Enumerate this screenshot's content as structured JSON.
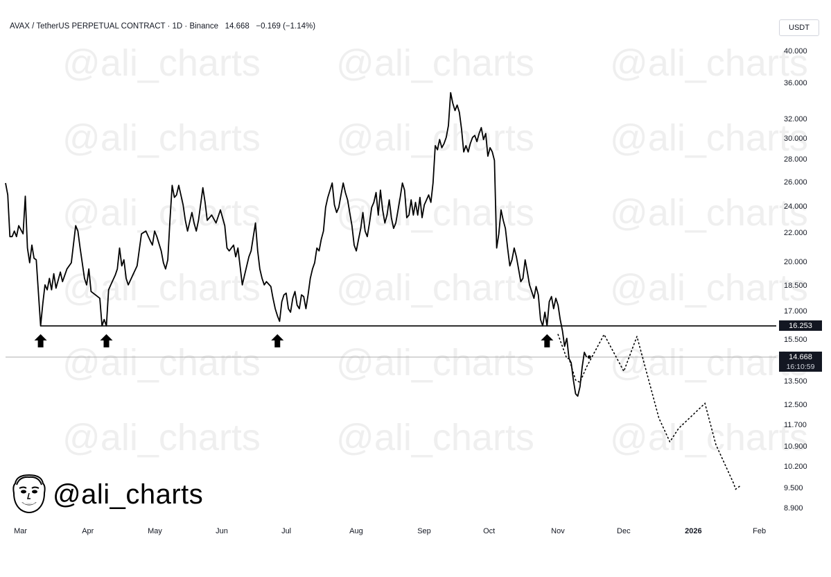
{
  "header": {
    "symbol": "AVAX / TetherUS PERPETUAL CONTRACT · 1D · Binance",
    "price": "14.668",
    "change": "−0.169 (−1.14%)"
  },
  "currency": "USDT",
  "watermark_text": "@ali_charts",
  "brand_text": "@ali_charts",
  "badges": {
    "support_level": "16.253",
    "last_price": "14.668",
    "countdown": "16:10:59"
  },
  "colors": {
    "background": "#ffffff",
    "price_line": "#000000",
    "badge": "#131722",
    "watermark": "#efefef"
  },
  "chart_data": {
    "type": "line",
    "x_axis": {
      "type": "date",
      "range": [
        "2025-02-22",
        "2026-02-06"
      ],
      "ticks": [
        {
          "label": "Mar",
          "date": "2025-03-01"
        },
        {
          "label": "Apr",
          "date": "2025-04-01"
        },
        {
          "label": "May",
          "date": "2025-05-01"
        },
        {
          "label": "Jun",
          "date": "2025-06-01"
        },
        {
          "label": "Jul",
          "date": "2025-07-01"
        },
        {
          "label": "Aug",
          "date": "2025-08-01"
        },
        {
          "label": "Sep",
          "date": "2025-09-01"
        },
        {
          "label": "Oct",
          "date": "2025-10-01"
        },
        {
          "label": "Nov",
          "date": "2025-11-01"
        },
        {
          "label": "Dec",
          "date": "2025-12-01"
        },
        {
          "label": "2026",
          "date": "2026-01-01",
          "bold": true
        },
        {
          "label": "Feb",
          "date": "2026-02-01"
        }
      ]
    },
    "y_axis": {
      "scale": "log",
      "range": [
        8.5,
        43
      ],
      "ticks": [
        "40.000",
        "36.000",
        "32.000",
        "30.000",
        "28.000",
        "26.000",
        "24.000",
        "22.000",
        "20.000",
        "18.500",
        "17.000",
        "15.500",
        "13.500",
        "12.500",
        "11.700",
        "10.900",
        "10.200",
        "9.500",
        "8.900"
      ]
    },
    "grid": false,
    "series": [
      {
        "style": "solid",
        "points": [
          [
            "2025-02-22",
            26.0
          ],
          [
            "2025-02-23",
            25.0
          ],
          [
            "2025-02-24",
            21.8
          ],
          [
            "2025-02-25",
            21.8
          ],
          [
            "2025-02-26",
            22.2
          ],
          [
            "2025-02-27",
            21.8
          ],
          [
            "2025-02-28",
            22.6
          ],
          [
            "2025-03-02",
            22.0
          ],
          [
            "2025-03-03",
            24.9
          ],
          [
            "2025-03-04",
            21.0
          ],
          [
            "2025-03-05",
            20.0
          ],
          [
            "2025-03-06",
            21.2
          ],
          [
            "2025-03-07",
            20.3
          ],
          [
            "2025-03-08",
            20.2
          ],
          [
            "2025-03-10",
            16.253
          ],
          [
            "2025-03-11",
            17.5
          ],
          [
            "2025-03-12",
            18.6
          ],
          [
            "2025-03-13",
            18.3
          ],
          [
            "2025-03-14",
            19.0
          ],
          [
            "2025-03-15",
            18.3
          ],
          [
            "2025-03-16",
            19.3
          ],
          [
            "2025-03-17",
            18.4
          ],
          [
            "2025-03-19",
            19.4
          ],
          [
            "2025-03-20",
            18.8
          ],
          [
            "2025-03-22",
            19.6
          ],
          [
            "2025-03-24",
            20.0
          ],
          [
            "2025-03-26",
            22.6
          ],
          [
            "2025-03-27",
            22.2
          ],
          [
            "2025-03-28",
            21.0
          ],
          [
            "2025-03-30",
            19.0
          ],
          [
            "2025-03-31",
            18.6
          ],
          [
            "2025-04-01",
            19.6
          ],
          [
            "2025-04-02",
            18.2
          ],
          [
            "2025-04-04",
            18.0
          ],
          [
            "2025-04-06",
            17.8
          ],
          [
            "2025-04-07",
            16.253
          ],
          [
            "2025-04-08",
            16.6
          ],
          [
            "2025-04-09",
            16.253
          ],
          [
            "2025-04-10",
            18.3
          ],
          [
            "2025-04-11",
            18.6
          ],
          [
            "2025-04-13",
            19.2
          ],
          [
            "2025-04-14",
            19.6
          ],
          [
            "2025-04-15",
            21.0
          ],
          [
            "2025-04-16",
            19.8
          ],
          [
            "2025-04-17",
            20.2
          ],
          [
            "2025-04-18",
            19.0
          ],
          [
            "2025-04-19",
            18.6
          ],
          [
            "2025-04-21",
            19.2
          ],
          [
            "2025-04-23",
            19.8
          ],
          [
            "2025-04-25",
            22.0
          ],
          [
            "2025-04-27",
            22.2
          ],
          [
            "2025-04-29",
            21.5
          ],
          [
            "2025-04-30",
            21.2
          ],
          [
            "2025-05-01",
            22.2
          ],
          [
            "2025-05-02",
            21.8
          ],
          [
            "2025-05-04",
            20.8
          ],
          [
            "2025-05-05",
            20.0
          ],
          [
            "2025-05-06",
            19.6
          ],
          [
            "2025-05-07",
            20.2
          ],
          [
            "2025-05-08",
            23.0
          ],
          [
            "2025-05-09",
            25.8
          ],
          [
            "2025-05-10",
            24.8
          ],
          [
            "2025-05-11",
            25.0
          ],
          [
            "2025-05-12",
            25.8
          ],
          [
            "2025-05-14",
            24.2
          ],
          [
            "2025-05-15",
            23.0
          ],
          [
            "2025-05-16",
            22.2
          ],
          [
            "2025-05-18",
            23.6
          ],
          [
            "2025-05-19",
            22.8
          ],
          [
            "2025-05-20",
            22.2
          ],
          [
            "2025-05-21",
            23.0
          ],
          [
            "2025-05-23",
            25.6
          ],
          [
            "2025-05-24",
            24.4
          ],
          [
            "2025-05-25",
            23.0
          ],
          [
            "2025-05-27",
            23.4
          ],
          [
            "2025-05-29",
            22.8
          ],
          [
            "2025-05-31",
            23.8
          ],
          [
            "2025-06-02",
            22.6
          ],
          [
            "2025-06-03",
            21.0
          ],
          [
            "2025-06-04",
            20.8
          ],
          [
            "2025-06-06",
            21.2
          ],
          [
            "2025-06-07",
            20.4
          ],
          [
            "2025-06-08",
            21.0
          ],
          [
            "2025-06-10",
            18.6
          ],
          [
            "2025-06-11",
            19.2
          ],
          [
            "2025-06-13",
            20.4
          ],
          [
            "2025-06-14",
            20.8
          ],
          [
            "2025-06-15",
            21.8
          ],
          [
            "2025-06-16",
            22.8
          ],
          [
            "2025-06-17",
            20.8
          ],
          [
            "2025-06-18",
            19.6
          ],
          [
            "2025-06-19",
            19.0
          ],
          [
            "2025-06-20",
            18.6
          ],
          [
            "2025-06-21",
            18.8
          ],
          [
            "2025-06-23",
            18.5
          ],
          [
            "2025-06-24",
            17.8
          ],
          [
            "2025-06-25",
            17.2
          ],
          [
            "2025-06-26",
            16.8
          ],
          [
            "2025-06-27",
            16.5
          ],
          [
            "2025-06-28",
            17.6
          ],
          [
            "2025-06-29",
            18.0
          ],
          [
            "2025-06-30",
            18.1
          ],
          [
            "2025-07-01",
            17.2
          ],
          [
            "2025-07-02",
            17.0
          ],
          [
            "2025-07-03",
            17.8
          ],
          [
            "2025-07-04",
            18.2
          ],
          [
            "2025-07-05",
            17.4
          ],
          [
            "2025-07-06",
            17.2
          ],
          [
            "2025-07-07",
            18.0
          ],
          [
            "2025-07-08",
            17.9
          ],
          [
            "2025-07-09",
            17.2
          ],
          [
            "2025-07-10",
            18.0
          ],
          [
            "2025-07-11",
            19.0
          ],
          [
            "2025-07-12",
            19.6
          ],
          [
            "2025-07-13",
            20.0
          ],
          [
            "2025-07-14",
            21.0
          ],
          [
            "2025-07-15",
            20.8
          ],
          [
            "2025-07-16",
            21.6
          ],
          [
            "2025-07-17",
            22.2
          ],
          [
            "2025-07-18",
            24.0
          ],
          [
            "2025-07-19",
            24.8
          ],
          [
            "2025-07-20",
            25.4
          ],
          [
            "2025-07-21",
            26.0
          ],
          [
            "2025-07-22",
            24.2
          ],
          [
            "2025-07-23",
            23.6
          ],
          [
            "2025-07-24",
            24.0
          ],
          [
            "2025-07-25",
            25.0
          ],
          [
            "2025-07-26",
            26.0
          ],
          [
            "2025-07-27",
            25.2
          ],
          [
            "2025-07-28",
            24.6
          ],
          [
            "2025-07-30",
            22.6
          ],
          [
            "2025-07-31",
            21.2
          ],
          [
            "2025-08-01",
            20.8
          ],
          [
            "2025-08-02",
            21.6
          ],
          [
            "2025-08-03",
            22.4
          ],
          [
            "2025-08-04",
            23.6
          ],
          [
            "2025-08-05",
            22.2
          ],
          [
            "2025-08-06",
            21.8
          ],
          [
            "2025-08-07",
            22.8
          ],
          [
            "2025-08-08",
            24.0
          ],
          [
            "2025-08-09",
            24.4
          ],
          [
            "2025-08-10",
            25.2
          ],
          [
            "2025-08-11",
            23.4
          ],
          [
            "2025-08-12",
            25.4
          ],
          [
            "2025-08-13",
            23.8
          ],
          [
            "2025-08-14",
            22.8
          ],
          [
            "2025-08-15",
            23.4
          ],
          [
            "2025-08-16",
            24.6
          ],
          [
            "2025-08-17",
            23.2
          ],
          [
            "2025-08-18",
            22.4
          ],
          [
            "2025-08-19",
            22.8
          ],
          [
            "2025-08-21",
            24.8
          ],
          [
            "2025-08-22",
            26.0
          ],
          [
            "2025-08-23",
            25.4
          ],
          [
            "2025-08-24",
            23.2
          ],
          [
            "2025-08-25",
            23.4
          ],
          [
            "2025-08-26",
            24.6
          ],
          [
            "2025-08-27",
            23.4
          ],
          [
            "2025-08-28",
            24.4
          ],
          [
            "2025-08-29",
            23.4
          ],
          [
            "2025-08-30",
            24.8
          ],
          [
            "2025-08-31",
            23.2
          ],
          [
            "2025-09-01",
            24.2
          ],
          [
            "2025-09-02",
            24.6
          ],
          [
            "2025-09-03",
            25.0
          ],
          [
            "2025-09-04",
            24.4
          ],
          [
            "2025-09-05",
            26.0
          ],
          [
            "2025-09-06",
            29.4
          ],
          [
            "2025-09-07",
            29.0
          ],
          [
            "2025-09-08",
            30.0
          ],
          [
            "2025-09-09",
            29.2
          ],
          [
            "2025-09-10",
            29.6
          ],
          [
            "2025-09-11",
            30.2
          ],
          [
            "2025-09-12",
            31.4
          ],
          [
            "2025-09-13",
            35.0
          ],
          [
            "2025-09-14",
            33.8
          ],
          [
            "2025-09-15",
            33.0
          ],
          [
            "2025-09-16",
            33.6
          ],
          [
            "2025-09-17",
            32.8
          ],
          [
            "2025-09-18",
            31.0
          ],
          [
            "2025-09-19",
            28.8
          ],
          [
            "2025-09-20",
            29.4
          ],
          [
            "2025-09-21",
            28.8
          ],
          [
            "2025-09-22",
            29.6
          ],
          [
            "2025-09-23",
            30.2
          ],
          [
            "2025-09-24",
            30.4
          ],
          [
            "2025-09-25",
            29.8
          ],
          [
            "2025-09-26",
            30.6
          ],
          [
            "2025-09-27",
            31.2
          ],
          [
            "2025-09-28",
            30.0
          ],
          [
            "2025-09-29",
            30.6
          ],
          [
            "2025-09-30",
            28.4
          ],
          [
            "2025-10-01",
            29.2
          ],
          [
            "2025-10-02",
            28.8
          ],
          [
            "2025-10-03",
            28.0
          ],
          [
            "2025-10-04",
            21.0
          ],
          [
            "2025-10-05",
            22.0
          ],
          [
            "2025-10-06",
            23.8
          ],
          [
            "2025-10-07",
            23.0
          ],
          [
            "2025-10-08",
            22.4
          ],
          [
            "2025-10-09",
            21.0
          ],
          [
            "2025-10-10",
            19.8
          ],
          [
            "2025-10-11",
            20.2
          ],
          [
            "2025-10-12",
            21.0
          ],
          [
            "2025-10-13",
            20.4
          ],
          [
            "2025-10-14",
            19.6
          ],
          [
            "2025-10-15",
            18.8
          ],
          [
            "2025-10-16",
            19.0
          ],
          [
            "2025-10-17",
            20.2
          ],
          [
            "2025-10-18",
            19.4
          ],
          [
            "2025-10-19",
            18.6
          ],
          [
            "2025-10-20",
            18.2
          ],
          [
            "2025-10-21",
            17.8
          ],
          [
            "2025-10-22",
            18.5
          ],
          [
            "2025-10-23",
            18.0
          ],
          [
            "2025-10-24",
            16.6
          ],
          [
            "2025-10-25",
            16.253
          ],
          [
            "2025-10-26",
            17.0
          ],
          [
            "2025-10-27",
            16.253
          ],
          [
            "2025-10-28",
            17.6
          ],
          [
            "2025-10-29",
            17.9
          ],
          [
            "2025-10-30",
            17.2
          ],
          [
            "2025-10-31",
            17.8
          ],
          [
            "2025-11-01",
            17.4
          ],
          [
            "2025-11-02",
            16.6
          ],
          [
            "2025-11-03",
            16.0
          ],
          [
            "2025-11-04",
            15.2
          ],
          [
            "2025-11-05",
            15.6
          ],
          [
            "2025-11-06",
            14.6
          ],
          [
            "2025-11-07",
            14.4
          ],
          [
            "2025-11-08",
            13.6
          ],
          [
            "2025-11-09",
            13.0
          ],
          [
            "2025-11-10",
            12.9
          ],
          [
            "2025-11-11",
            13.3
          ],
          [
            "2025-11-12",
            14.2
          ],
          [
            "2025-11-13",
            14.9
          ],
          [
            "2025-11-14",
            14.668
          ]
        ]
      },
      {
        "style": "dotted",
        "points": [
          [
            "2025-11-01",
            15.8
          ],
          [
            "2025-11-05",
            14.6
          ],
          [
            "2025-11-06",
            14.6
          ],
          [
            "2025-11-09",
            13.6
          ],
          [
            "2025-11-11",
            13.5
          ],
          [
            "2025-11-14",
            14.2
          ],
          [
            "2025-11-22",
            15.8
          ],
          [
            "2025-12-01",
            14.0
          ],
          [
            "2025-12-07",
            15.7
          ],
          [
            "2025-12-17",
            12.0
          ],
          [
            "2025-12-22",
            11.1
          ],
          [
            "2025-12-26",
            11.6
          ],
          [
            "2026-01-07",
            12.6
          ],
          [
            "2026-01-12",
            11.0
          ],
          [
            "2026-01-20",
            9.7
          ],
          [
            "2026-01-21",
            9.5
          ],
          [
            "2026-01-23",
            9.6
          ]
        ]
      }
    ],
    "horizontal_lines": [
      16.253,
      14.668
    ],
    "markers": {
      "type": "up-arrow",
      "dates": [
        "2025-03-10",
        "2025-04-09",
        "2025-06-26",
        "2025-10-27"
      ]
    }
  }
}
